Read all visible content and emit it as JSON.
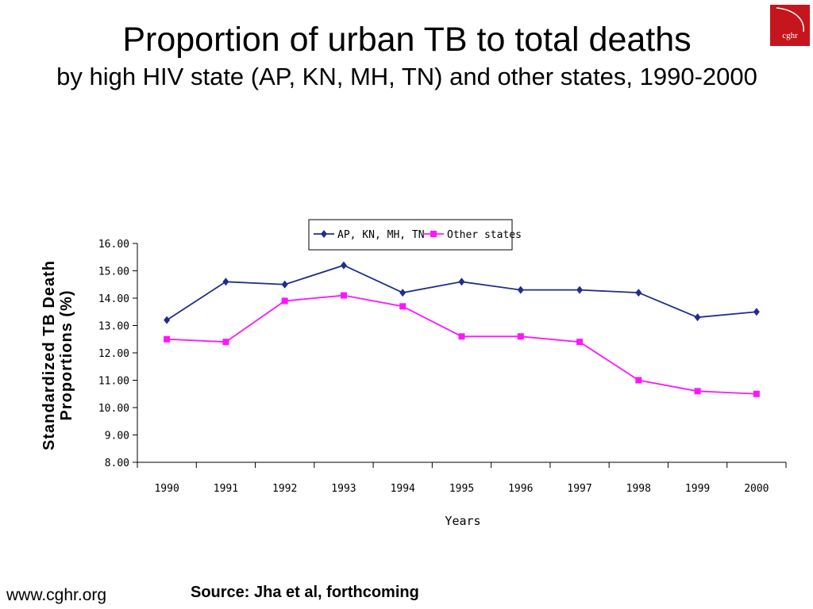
{
  "title": "Proportion of urban TB to total deaths",
  "subtitle": "by high HIV state (AP, KN, MH, TN) and other states, 1990-2000",
  "logo_text": "cghr",
  "footer": {
    "url": "www.cghr.org",
    "source": "Source: Jha et al, forthcoming"
  },
  "colors": {
    "series1": "#1f2e8c",
    "series2": "#ff14ff",
    "logo": "#c4161c"
  },
  "chart_data": {
    "type": "line",
    "x": [
      "1990",
      "1991",
      "1992",
      "1993",
      "1994",
      "1995",
      "1996",
      "1997",
      "1998",
      "1999",
      "2000"
    ],
    "series": [
      {
        "name": "AP, KN, MH, TN",
        "values": [
          13.2,
          14.6,
          14.5,
          15.2,
          14.2,
          14.6,
          14.3,
          14.3,
          14.2,
          13.3,
          13.5
        ]
      },
      {
        "name": "Other states",
        "values": [
          12.5,
          12.4,
          13.9,
          14.1,
          13.7,
          12.6,
          12.6,
          12.4,
          11.0,
          10.6,
          10.5
        ]
      }
    ],
    "yticks": [
      "16.00",
      "15.00",
      "14.00",
      "13.00",
      "12.00",
      "11.00",
      "10.00",
      "9.00",
      "8.00"
    ],
    "ylim": [
      8,
      16
    ],
    "xlabel": "Years",
    "ylabel_line1": "Standardized TB Death",
    "ylabel_line2": "Proportions (%)",
    "grid": false,
    "legend_position": "top-center"
  }
}
